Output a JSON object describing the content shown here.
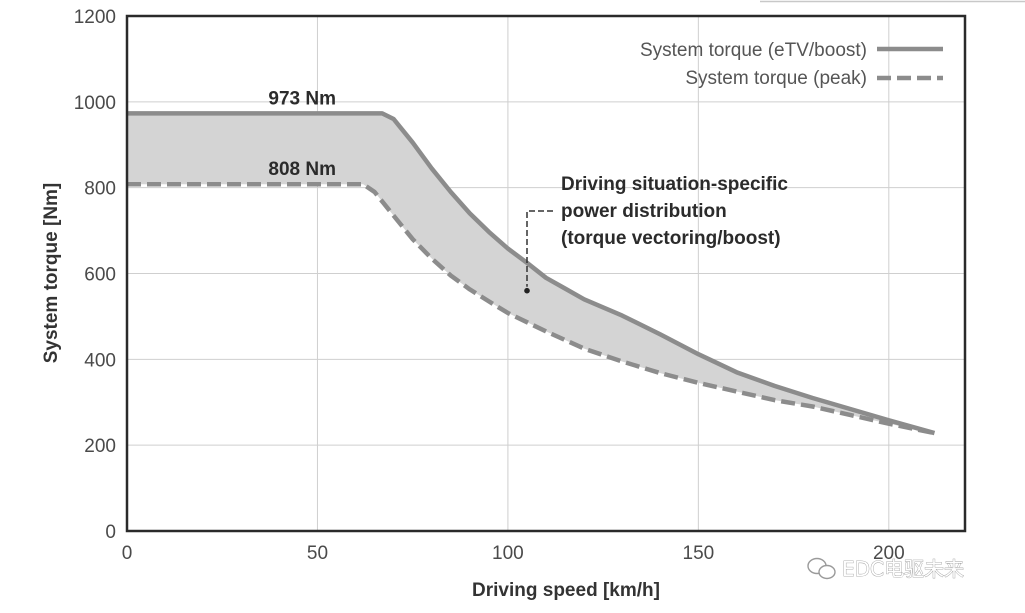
{
  "chart_data": {
    "type": "area",
    "title": "",
    "xlabel": "Driving speed [km/h]",
    "ylabel": "System torque [Nm]",
    "xlim": [
      0,
      220
    ],
    "ylim": [
      0,
      1200
    ],
    "x_ticks": [
      0,
      50,
      100,
      150,
      200
    ],
    "y_ticks": [
      0,
      200,
      400,
      600,
      800,
      1000,
      1200
    ],
    "grid": true,
    "legend_position": "top-right",
    "series": [
      {
        "name": "System torque (eTV/boost)",
        "style": "solid",
        "color": "#8c8c8c",
        "x": [
          0,
          67,
          70,
          75,
          80,
          85,
          90,
          95,
          100,
          105,
          110,
          115,
          120,
          130,
          140,
          150,
          160,
          170,
          180,
          190,
          200,
          212
        ],
        "y": [
          973,
          973,
          960,
          905,
          845,
          790,
          740,
          697,
          658,
          625,
          590,
          565,
          540,
          502,
          458,
          412,
          370,
          338,
          310,
          284,
          258,
          228
        ]
      },
      {
        "name": "System torque (peak)",
        "style": "dashed",
        "color": "#8c8c8c",
        "x": [
          0,
          62,
          65,
          70,
          75,
          80,
          85,
          90,
          95,
          100,
          110,
          120,
          130,
          140,
          150,
          160,
          170,
          180,
          190,
          200,
          212
        ],
        "y": [
          808,
          808,
          790,
          735,
          680,
          635,
          595,
          563,
          535,
          508,
          465,
          425,
          395,
          368,
          345,
          325,
          305,
          290,
          270,
          250,
          228
        ]
      }
    ],
    "annotations": [
      {
        "text": "973 Nm",
        "x": 46,
        "y": 973
      },
      {
        "text": "808 Nm",
        "x": 46,
        "y": 808
      },
      {
        "lines": [
          "Driving situation-specific",
          "power distribution",
          "(torque vectoring/boost)"
        ],
        "target_x": 105,
        "target_y": 560
      }
    ]
  },
  "fill_color": "#d4d4d4",
  "watermark": "EDC电驱未来"
}
